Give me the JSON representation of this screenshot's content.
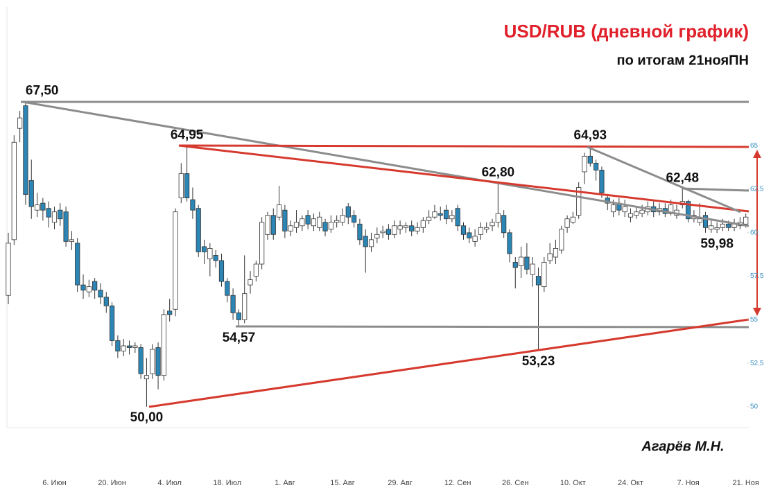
{
  "chart_data": {
    "type": "candlestick",
    "title": "USD/RUB (дневной график)",
    "subtitle": "по итогам 21нояПН",
    "author": "Агарёв М.Н.",
    "categories": [
      null,
      null,
      null,
      null,
      null,
      null,
      null,
      null,
      "6. Июн",
      null,
      null,
      null,
      null,
      null,
      null,
      null,
      null,
      null,
      "20. Июн",
      null,
      null,
      null,
      null,
      null,
      null,
      null,
      null,
      null,
      "4. Июл",
      null,
      null,
      null,
      null,
      null,
      null,
      null,
      null,
      null,
      "18. Июл",
      null,
      null,
      null,
      null,
      null,
      null,
      null,
      null,
      null,
      "1. Авг",
      null,
      null,
      null,
      null,
      null,
      null,
      null,
      null,
      null,
      "15. Авг",
      null,
      null,
      null,
      null,
      null,
      null,
      null,
      null,
      null,
      "29. Авг",
      null,
      null,
      null,
      null,
      null,
      null,
      null,
      null,
      null,
      "12. Сен",
      null,
      null,
      null,
      null,
      null,
      null,
      null,
      null,
      null,
      "26. Сен",
      null,
      null,
      null,
      null,
      null,
      null,
      null,
      null,
      null,
      "10. Окт",
      null,
      null,
      null,
      null,
      null,
      null,
      null,
      null,
      null,
      "24. Окт",
      null,
      null,
      null,
      null,
      null,
      null,
      null,
      null,
      null,
      "7. Ноя",
      null,
      null,
      null,
      null,
      null,
      null,
      null,
      null,
      null,
      "21. Ноя"
    ],
    "open": [
      56.4,
      59.6,
      66.0,
      67.3,
      63.0,
      61.3,
      61.7,
      61.4,
      60.6,
      61.3,
      61.2,
      59.5,
      59.4,
      57.0,
      56.6,
      57.2,
      56.7,
      56.3,
      55.8,
      53.8,
      53.2,
      53.5,
      53.4,
      53.4,
      51.6,
      51.9,
      53.4,
      51.8,
      55.5,
      55.6,
      62.0,
      63.4,
      61.9,
      61.4,
      59.2,
      58.5,
      58.7,
      58.4,
      57.2,
      56.4,
      55.4,
      55.0,
      57.0,
      57.5,
      58.2,
      59.9,
      61.0,
      60.9,
      61.3,
      60.1,
      60.3,
      60.4,
      61.0,
      60.4,
      60.3,
      60.6,
      60.2,
      60.6,
      60.6,
      61.5,
      61.0,
      60.5,
      59.8,
      59.2,
      59.7,
      60.0,
      60.2,
      59.9,
      60.2,
      60.3,
      60.4,
      60.1,
      60.3,
      60.7,
      60.9,
      61.1,
      61.3,
      60.8,
      61.4,
      60.4,
      60.0,
      59.5,
      59.9,
      60.2,
      60.4,
      60.6,
      61.0,
      60.0,
      58.3,
      58.1,
      58.6,
      57.6,
      57.5,
      56.9,
      58.4,
      58.6,
      59.0,
      60.3,
      60.6,
      61.0,
      63.5,
      64.4,
      64.0,
      63.6,
      62.0,
      61.2,
      61.7,
      61.2,
      60.9,
      61.0,
      61.1,
      61.2,
      61.5,
      61.2,
      61.4,
      61.1,
      61.0,
      61.6,
      61.8,
      60.8,
      60.6,
      61.0,
      60.2,
      60.2,
      60.3,
      60.5,
      60.3,
      60.4,
      60.5
    ],
    "high": [
      60.0,
      65.6,
      67.0,
      67.5,
      64.2,
      62.3,
      62.0,
      61.8,
      61.5,
      61.7,
      61.5,
      60.1,
      59.7,
      57.6,
      57.3,
      57.4,
      57.1,
      56.6,
      56.0,
      54.1,
      53.9,
      53.8,
      53.7,
      53.6,
      52.8,
      53.6,
      53.7,
      55.6,
      56.2,
      61.4,
      64.0,
      64.95,
      62.6,
      61.6,
      59.6,
      59.4,
      59.0,
      58.8,
      57.4,
      56.8,
      55.6,
      58.7,
      57.8,
      58.4,
      60.9,
      61.2,
      61.4,
      62.7,
      61.6,
      60.7,
      61.3,
      61.0,
      61.3,
      61.1,
      61.2,
      60.8,
      61.0,
      61.0,
      61.4,
      61.7,
      61.3,
      60.8,
      60.2,
      60.0,
      60.3,
      60.4,
      60.5,
      60.7,
      60.7,
      60.6,
      60.7,
      60.6,
      60.9,
      61.3,
      61.6,
      61.5,
      61.6,
      61.3,
      61.6,
      60.6,
      60.3,
      60.2,
      60.6,
      60.6,
      60.8,
      62.8,
      61.3,
      60.2,
      58.6,
      59.2,
      59.4,
      58.6,
      58.0,
      58.6,
      59.4,
      59.6,
      60.4,
      61.0,
      61.2,
      62.9,
      64.6,
      64.93,
      64.2,
      63.8,
      62.2,
      61.9,
      62.0,
      61.9,
      61.4,
      61.5,
      61.6,
      61.8,
      61.8,
      61.7,
      61.7,
      61.9,
      61.6,
      62.48,
      61.9,
      61.3,
      61.7,
      61.2,
      60.7,
      60.6,
      60.8,
      60.7,
      60.8,
      60.9,
      61.1
    ],
    "low": [
      55.9,
      59.3,
      65.2,
      61.6,
      60.8,
      60.9,
      60.7,
      60.3,
      60.2,
      60.4,
      59.2,
      59.0,
      56.6,
      56.2,
      56.3,
      56.2,
      55.9,
      55.4,
      53.5,
      52.8,
      52.9,
      53.0,
      53.1,
      51.6,
      50.0,
      51.6,
      51.0,
      51.5,
      54.9,
      55.2,
      61.7,
      61.8,
      60.8,
      58.6,
      58.2,
      57.5,
      58.0,
      56.9,
      56.0,
      55.0,
      54.57,
      54.8,
      56.5,
      57.2,
      57.9,
      59.6,
      59.6,
      60.7,
      59.7,
      59.8,
      60.0,
      60.1,
      60.2,
      60.1,
      60.1,
      59.8,
      60.0,
      60.3,
      60.4,
      60.5,
      60.3,
      59.3,
      57.7,
      58.9,
      59.4,
      59.7,
      59.6,
      59.7,
      59.9,
      60.0,
      59.8,
      59.9,
      60.0,
      60.5,
      60.8,
      60.7,
      60.5,
      60.6,
      60.1,
      59.6,
      59.4,
      59.2,
      59.6,
      60.0,
      60.1,
      60.3,
      59.7,
      58.3,
      56.8,
      57.4,
      57.6,
      56.9,
      53.23,
      56.6,
      58.2,
      58.2,
      58.8,
      60.0,
      60.5,
      60.8,
      62.8,
      63.8,
      63.0,
      62.0,
      61.3,
      60.9,
      61.0,
      60.9,
      60.6,
      60.8,
      60.9,
      61.0,
      60.9,
      61.0,
      60.9,
      61.0,
      60.8,
      61.4,
      60.6,
      60.6,
      60.4,
      60.0,
      60.0,
      59.98,
      60.1,
      60.1,
      60.1,
      60.2,
      60.3
    ],
    "close": [
      59.4,
      65.2,
      66.6,
      62.2,
      61.5,
      61.6,
      61.3,
      60.9,
      61.2,
      60.8,
      59.5,
      59.6,
      57.0,
      56.7,
      56.9,
      56.7,
      56.3,
      55.8,
      53.8,
      53.2,
      53.5,
      53.4,
      53.5,
      51.9,
      51.8,
      53.3,
      51.8,
      55.3,
      55.3,
      61.2,
      63.4,
      62.0,
      61.3,
      58.9,
      58.9,
      59.1,
      58.4,
      57.2,
      56.4,
      55.4,
      55.0,
      56.5,
      57.3,
      58.2,
      60.6,
      61.0,
      59.9,
      61.6,
      60.1,
      60.4,
      60.6,
      60.8,
      60.5,
      60.8,
      60.9,
      60.1,
      60.6,
      60.7,
      61.0,
      60.9,
      60.6,
      59.6,
      59.2,
      59.6,
      59.9,
      60.1,
      59.9,
      60.4,
      60.4,
      60.4,
      60.1,
      60.3,
      60.7,
      60.9,
      61.2,
      61.0,
      60.8,
      61.0,
      60.4,
      59.9,
      59.7,
      59.8,
      60.3,
      60.3,
      60.6,
      61.1,
      60.0,
      58.8,
      58.0,
      58.6,
      57.9,
      58.2,
      57.0,
      58.3,
      58.8,
      59.1,
      60.2,
      60.8,
      60.9,
      62.6,
      64.4,
      64.0,
      63.6,
      62.3,
      61.7,
      61.6,
      61.3,
      61.5,
      61.1,
      61.2,
      61.3,
      61.5,
      61.2,
      61.4,
      61.1,
      61.6,
      61.3,
      61.8,
      60.8,
      61.0,
      60.8,
      60.3,
      60.4,
      60.3,
      60.5,
      60.3,
      60.5,
      60.6,
      60.9
    ],
    "up_color": "#ffffff",
    "down_color": "#2b86b5",
    "outline_color": "#333333",
    "ylim": [
      48.8,
      72.5
    ],
    "yticks": [
      50,
      52.5,
      55,
      57.5,
      60,
      62.5,
      65
    ],
    "grid": false,
    "annotations": [
      {
        "value": 67.5,
        "label": "67,50"
      },
      {
        "value": 64.95,
        "label": "64,95"
      },
      {
        "value": 62.8,
        "label": "62,80"
      },
      {
        "value": 64.93,
        "label": "64,93"
      },
      {
        "value": 62.48,
        "label": "62,48"
      },
      {
        "value": 54.57,
        "label": "54,57"
      },
      {
        "value": 50.0,
        "label": "50,00"
      },
      {
        "value": 53.23,
        "label": "53,23"
      },
      {
        "value": 59.98,
        "label": "59,98"
      }
    ]
  }
}
